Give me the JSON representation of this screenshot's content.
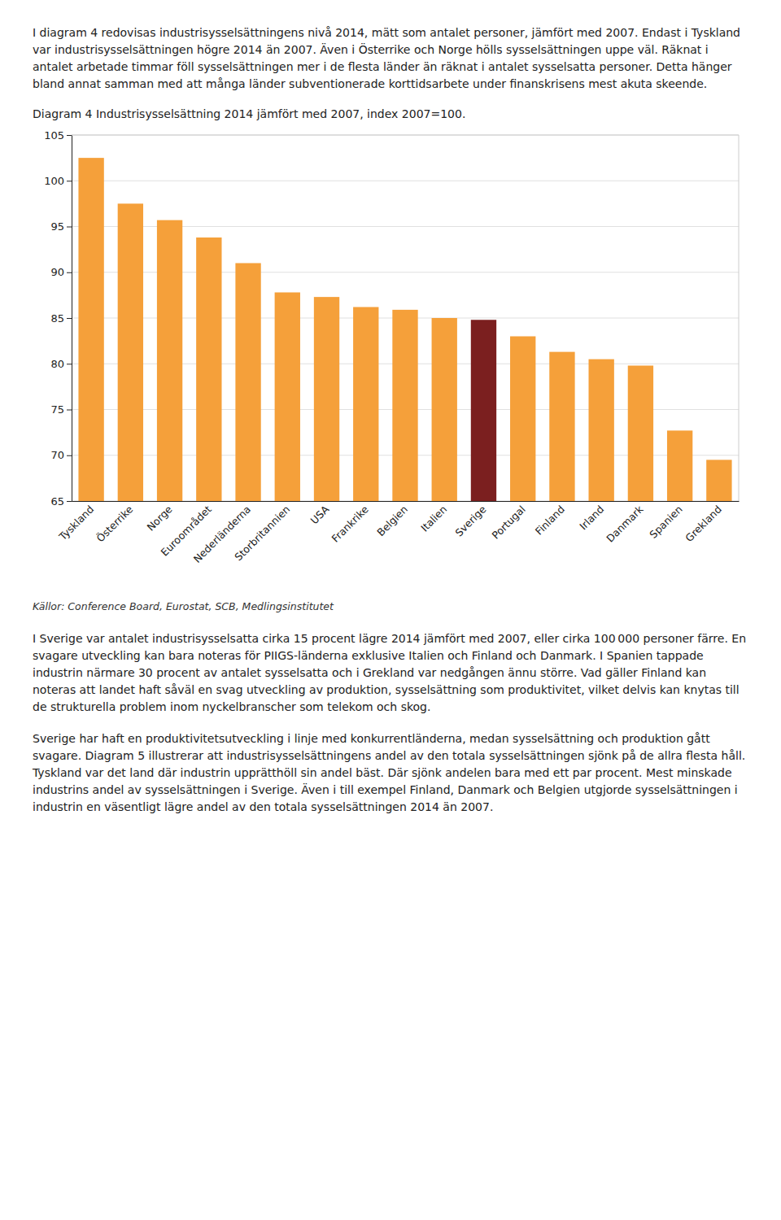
{
  "paragraphs": [
    "I diagram 4 redovisas industrisysselsättningens nivå 2014, mätt som antalet personer, jämfört med 2007. Endast i Tyskland var industrisysselsättningen högre 2014 än 2007. Även i Österrike och Norge hölls sysselsättningen uppe väl. Räknat i antalet arbetade timmar föll sysselsättningen mer i de flesta länder än räknat i antalet sysselsatta personer. Detta hänger bland annat samman med att många länder subventionerade korttidsarbete under finanskrisens mest akuta skeende.",
    "I Sverige var antalet industrisysselsatta cirka 15 procent lägre 2014 jämfört med 2007, eller cirka 100 000 personer färre. En svagare utveckling kan bara noteras för PIIGS-länderna exklusive Italien och Finland och Danmark. I Spanien tappade industrin närmare 30 procent av antalet sysselsatta och i Grekland var nedgången ännu större. Vad gäller Finland kan noteras att landet haft såväl en svag utveckling av produktion, sysselsättning som produktivitet, vilket delvis kan knytas till de strukturella problem inom nyckelbranscher som telekom och skog.",
    "Sverige har haft en produktivitetsutveckling i linje med konkurrentländerna, medan sysselsättning och produktion gått svagare. Diagram 5 illustrerar att industrisysselsättningens andel av den totala sysselsättningen sjönk på de allra flesta håll. Tyskland var det land där industrin upprätthöll sin andel bäst. Där sjönk andelen bara med ett par procent. Mest minskade industrins andel av sysselsättningen i Sverige. Även i till exempel Finland, Danmark och Belgien utgjorde sysselsättningen i industrin en väsentligt lägre andel av den totala sysselsättningen 2014 än 2007."
  ],
  "chart_data": {
    "type": "bar",
    "title": "Diagram 4 Industrisysselsättning 2014 jämfört med 2007, index 2007=100.",
    "source": "Källor: Conference Board, Eurostat, SCB, Medlingsinstitutet",
    "categories": [
      "Tyskland",
      "Österrike",
      "Norge",
      "Euroområdet",
      "Nederländerna",
      "Storbritannien",
      "USA",
      "Frankrike",
      "Belgien",
      "Italien",
      "Sverige",
      "Portugal",
      "Finland",
      "Irland",
      "Danmark",
      "Spanien",
      "Grekland"
    ],
    "values": [
      102.5,
      97.5,
      95.7,
      93.8,
      91.0,
      87.8,
      87.3,
      86.2,
      85.9,
      85.0,
      84.8,
      83.0,
      81.3,
      80.5,
      79.8,
      72.7,
      69.5
    ],
    "colors": [
      "#F5A03A",
      "#F5A03A",
      "#F5A03A",
      "#F5A03A",
      "#F5A03A",
      "#F5A03A",
      "#F5A03A",
      "#F5A03A",
      "#F5A03A",
      "#F5A03A",
      "#7B1F1F",
      "#F5A03A",
      "#F5A03A",
      "#F5A03A",
      "#F5A03A",
      "#F5A03A",
      "#F5A03A"
    ],
    "ylim": [
      65,
      105
    ],
    "yticks": [
      65,
      70,
      75,
      80,
      85,
      90,
      95,
      100,
      105
    ],
    "grid": true
  }
}
